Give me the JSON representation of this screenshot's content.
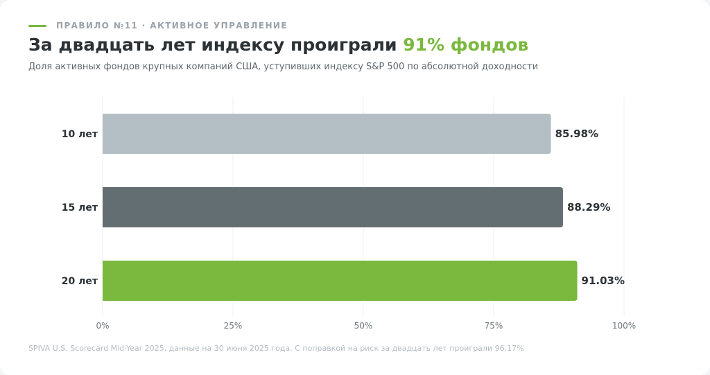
{
  "header": {
    "eyebrow": "ПРАВИЛО №11 · АКТИВНОЕ УПРАВЛЕНИЕ",
    "title_main": "За двадцать лет индексу проиграли ",
    "title_accent": "91% фондов",
    "subtitle": "Доля активных фондов крупных компаний США, уступивших индексу S&P 500 по абсолютной доходности"
  },
  "footnote": "SPIVA U.S. Scorecard Mid-Year 2025, данные на 30 июня 2025 года. С поправкой на риск за двадцать лет проиграли 96,17%",
  "colors": {
    "accent": "#7ab83e",
    "bar_10": "#b4bfc5",
    "bar_15": "#636e73",
    "bar_20": "#7ab83e",
    "gridline": "#eceff1"
  },
  "chart_data": {
    "type": "bar",
    "orientation": "horizontal",
    "categories": [
      "10 лет",
      "15 лет",
      "20 лет"
    ],
    "values": [
      85.98,
      88.29,
      91.03
    ],
    "value_labels": [
      "85.98%",
      "88.29%",
      "91.03%"
    ],
    "bar_colors": [
      "#b4bfc5",
      "#636e73",
      "#7ab83e"
    ],
    "xlim": [
      0,
      100
    ],
    "xticks": [
      0,
      25,
      50,
      75,
      100
    ],
    "xtick_labels": [
      "0%",
      "25%",
      "50%",
      "75%",
      "100%"
    ],
    "grid": true,
    "legend": "none"
  }
}
